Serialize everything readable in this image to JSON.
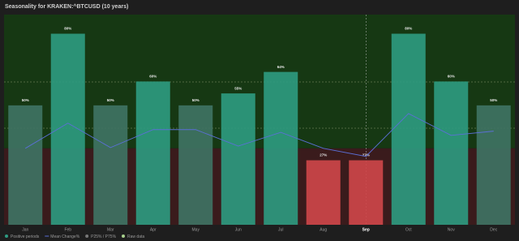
{
  "chart_data": {
    "type": "bar",
    "title": "Seasonality for KRAKEN:^BTCUSD (10 years)",
    "categories": [
      "Jan",
      "Feb",
      "Mar",
      "Apr",
      "May",
      "Jun",
      "Jul",
      "Aug",
      "Sep",
      "Oct",
      "Nov",
      "Dec"
    ],
    "highlight_category": "Sep",
    "series": [
      {
        "name": "Positive periods",
        "color": "#2e9c82",
        "values": [
          50,
          80,
          50,
          60,
          50,
          55,
          64,
          27,
          27,
          80,
          60,
          50
        ],
        "value_labels": [
          "50%",
          "80%",
          "50%",
          "60%",
          "50%",
          "55%",
          "64%",
          "27%",
          "27%",
          "80%",
          "60%",
          "50%"
        ],
        "colors": [
          "#3f7465",
          "#2e9c82",
          "#3f7465",
          "#2e9c82",
          "#3f7465",
          "#2e9c82",
          "#2e9c82",
          "#d0474a",
          "#d0474a",
          "#2e9c82",
          "#2e9c82",
          "#3f7465"
        ]
      },
      {
        "name": "Mean Change%",
        "color": "#5b6fd6",
        "axis": "y2",
        "values": [
          0,
          6.6,
          0.2,
          4.9,
          4.9,
          0.6,
          4.2,
          0,
          -2.1,
          9.1,
          3.4,
          4.5
        ]
      }
    ],
    "legend_extra": [
      "P25% / P75%",
      "Raw data"
    ],
    "ylim": [
      0,
      88
    ],
    "y2lim": [
      -20,
      35
    ]
  }
}
